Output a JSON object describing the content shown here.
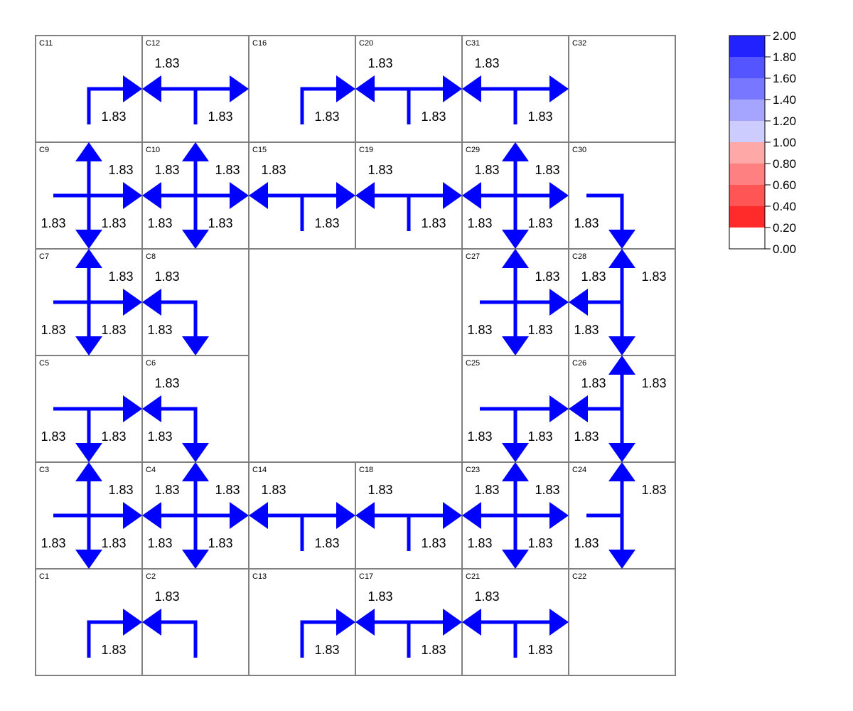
{
  "cells": [
    {
      "id": "C11",
      "col": 0,
      "row": 0
    },
    {
      "id": "C12",
      "col": 1,
      "row": 0
    },
    {
      "id": "C16",
      "col": 2,
      "row": 0
    },
    {
      "id": "C20",
      "col": 3,
      "row": 0
    },
    {
      "id": "C31",
      "col": 4,
      "row": 0
    },
    {
      "id": "C32",
      "col": 5,
      "row": 0
    },
    {
      "id": "C9",
      "col": 0,
      "row": 1
    },
    {
      "id": "C10",
      "col": 1,
      "row": 1
    },
    {
      "id": "C15",
      "col": 2,
      "row": 1
    },
    {
      "id": "C19",
      "col": 3,
      "row": 1
    },
    {
      "id": "C29",
      "col": 4,
      "row": 1
    },
    {
      "id": "C30",
      "col": 5,
      "row": 1
    },
    {
      "id": "C7",
      "col": 0,
      "row": 2
    },
    {
      "id": "C8",
      "col": 1,
      "row": 2
    },
    {
      "id": "C27",
      "col": 4,
      "row": 2
    },
    {
      "id": "C28",
      "col": 5,
      "row": 2
    },
    {
      "id": "C5",
      "col": 0,
      "row": 3
    },
    {
      "id": "C6",
      "col": 1,
      "row": 3
    },
    {
      "id": "C25",
      "col": 4,
      "row": 3
    },
    {
      "id": "C26",
      "col": 5,
      "row": 3
    },
    {
      "id": "C3",
      "col": 0,
      "row": 4
    },
    {
      "id": "C4",
      "col": 1,
      "row": 4
    },
    {
      "id": "C14",
      "col": 2,
      "row": 4
    },
    {
      "id": "C18",
      "col": 3,
      "row": 4
    },
    {
      "id": "C23",
      "col": 4,
      "row": 4
    },
    {
      "id": "C24",
      "col": 5,
      "row": 4
    },
    {
      "id": "C1",
      "col": 0,
      "row": 5
    },
    {
      "id": "C2",
      "col": 1,
      "row": 5
    },
    {
      "id": "C13",
      "col": 2,
      "row": 5
    },
    {
      "id": "C17",
      "col": 3,
      "row": 5
    },
    {
      "id": "C21",
      "col": 4,
      "row": 5
    },
    {
      "id": "C22",
      "col": 5,
      "row": 5
    }
  ],
  "flows": [
    {
      "from": "C11",
      "to": "C12",
      "value": "1.83"
    },
    {
      "from": "C12",
      "to": "C11",
      "value": "1.83"
    },
    {
      "from": "C12",
      "to": "C16",
      "value": "1.83"
    },
    {
      "from": "C16",
      "to": "C20",
      "value": "1.83"
    },
    {
      "from": "C20",
      "to": "C16",
      "value": "1.83"
    },
    {
      "from": "C20",
      "to": "C31",
      "value": "1.83"
    },
    {
      "from": "C31",
      "to": "C20",
      "value": "1.83"
    },
    {
      "from": "C31",
      "to": "C32",
      "value": "1.83"
    },
    {
      "from": "C9",
      "to": "C11",
      "value": "1.83"
    },
    {
      "from": "C9",
      "to": "C10",
      "value": "1.83"
    },
    {
      "from": "C9",
      "to": "C7",
      "value": "1.83"
    },
    {
      "from": "C10",
      "to": "C9",
      "value": "1.83"
    },
    {
      "from": "C10",
      "to": "C12",
      "value": "1.83"
    },
    {
      "from": "C10",
      "to": "C15",
      "value": "1.83"
    },
    {
      "from": "C10",
      "to": "C8",
      "value": "1.83"
    },
    {
      "from": "C15",
      "to": "C10",
      "value": "1.83"
    },
    {
      "from": "C15",
      "to": "C19",
      "value": "1.83"
    },
    {
      "from": "C19",
      "to": "C15",
      "value": "1.83"
    },
    {
      "from": "C19",
      "to": "C29",
      "value": "1.83"
    },
    {
      "from": "C29",
      "to": "C19",
      "value": "1.83"
    },
    {
      "from": "C29",
      "to": "C31",
      "value": "1.83"
    },
    {
      "from": "C29",
      "to": "C30",
      "value": "1.83"
    },
    {
      "from": "C29",
      "to": "C27",
      "value": "1.83"
    },
    {
      "from": "C30",
      "to": "C28",
      "value": "1.83"
    },
    {
      "from": "C7",
      "to": "C9",
      "value": "1.83"
    },
    {
      "from": "C7",
      "to": "C8",
      "value": "1.83"
    },
    {
      "from": "C7",
      "to": "C5",
      "value": "1.83"
    },
    {
      "from": "C8",
      "to": "C7",
      "value": "1.83"
    },
    {
      "from": "C8",
      "to": "C6",
      "value": "1.83"
    },
    {
      "from": "C27",
      "to": "C29",
      "value": "1.83"
    },
    {
      "from": "C27",
      "to": "C28",
      "value": "1.83"
    },
    {
      "from": "C27",
      "to": "C25",
      "value": "1.83"
    },
    {
      "from": "C28",
      "to": "C30",
      "value": "1.83"
    },
    {
      "from": "C28",
      "to": "C27",
      "value": "1.83"
    },
    {
      "from": "C28",
      "to": "C26",
      "value": "1.83"
    },
    {
      "from": "C5",
      "to": "C6",
      "value": "1.83"
    },
    {
      "from": "C5",
      "to": "C3",
      "value": "1.83"
    },
    {
      "from": "C6",
      "to": "C5",
      "value": "1.83"
    },
    {
      "from": "C6",
      "to": "C4",
      "value": "1.83"
    },
    {
      "from": "C25",
      "to": "C26",
      "value": "1.83"
    },
    {
      "from": "C25",
      "to": "C23",
      "value": "1.83"
    },
    {
      "from": "C26",
      "to": "C28",
      "value": "1.83"
    },
    {
      "from": "C26",
      "to": "C25",
      "value": "1.83"
    },
    {
      "from": "C26",
      "to": "C24",
      "value": "1.83"
    },
    {
      "from": "C3",
      "to": "C5",
      "value": "1.83"
    },
    {
      "from": "C3",
      "to": "C4",
      "value": "1.83"
    },
    {
      "from": "C3",
      "to": "C1",
      "value": "1.83"
    },
    {
      "from": "C4",
      "to": "C6",
      "value": "1.83"
    },
    {
      "from": "C4",
      "to": "C3",
      "value": "1.83"
    },
    {
      "from": "C4",
      "to": "C14",
      "value": "1.83"
    },
    {
      "from": "C4",
      "to": "C2",
      "value": "1.83"
    },
    {
      "from": "C14",
      "to": "C4",
      "value": "1.83"
    },
    {
      "from": "C14",
      "to": "C18",
      "value": "1.83"
    },
    {
      "from": "C18",
      "to": "C14",
      "value": "1.83"
    },
    {
      "from": "C18",
      "to": "C23",
      "value": "1.83"
    },
    {
      "from": "C23",
      "to": "C25",
      "value": "1.83"
    },
    {
      "from": "C23",
      "to": "C18",
      "value": "1.83"
    },
    {
      "from": "C23",
      "to": "C24",
      "value": "1.83"
    },
    {
      "from": "C23",
      "to": "C21",
      "value": "1.83"
    },
    {
      "from": "C24",
      "to": "C26",
      "value": "1.83"
    },
    {
      "from": "C24",
      "to": "C22",
      "value": "1.83"
    },
    {
      "from": "C1",
      "to": "C2",
      "value": "1.83"
    },
    {
      "from": "C2",
      "to": "C1",
      "value": "1.83"
    },
    {
      "from": "C13",
      "to": "C17",
      "value": "1.83"
    },
    {
      "from": "C17",
      "to": "C13",
      "value": "1.83"
    },
    {
      "from": "C17",
      "to": "C21",
      "value": "1.83"
    },
    {
      "from": "C21",
      "to": "C17",
      "value": "1.83"
    },
    {
      "from": "C21",
      "to": "C22",
      "value": "1.83"
    }
  ],
  "arrow_color": "#0000FF",
  "legend": {
    "ticks": [
      "2.00",
      "1.80",
      "1.60",
      "1.40",
      "1.20",
      "1.00",
      "0.80",
      "0.60",
      "0.40",
      "0.20",
      "0.00"
    ],
    "colors": [
      "#2222FF",
      "#5555FF",
      "#7777FF",
      "#A5A5FF",
      "#CCCCFF",
      "#FFA8A8",
      "#FF8080",
      "#FF5555",
      "#FF2A2A",
      "#FFFFFF"
    ]
  }
}
